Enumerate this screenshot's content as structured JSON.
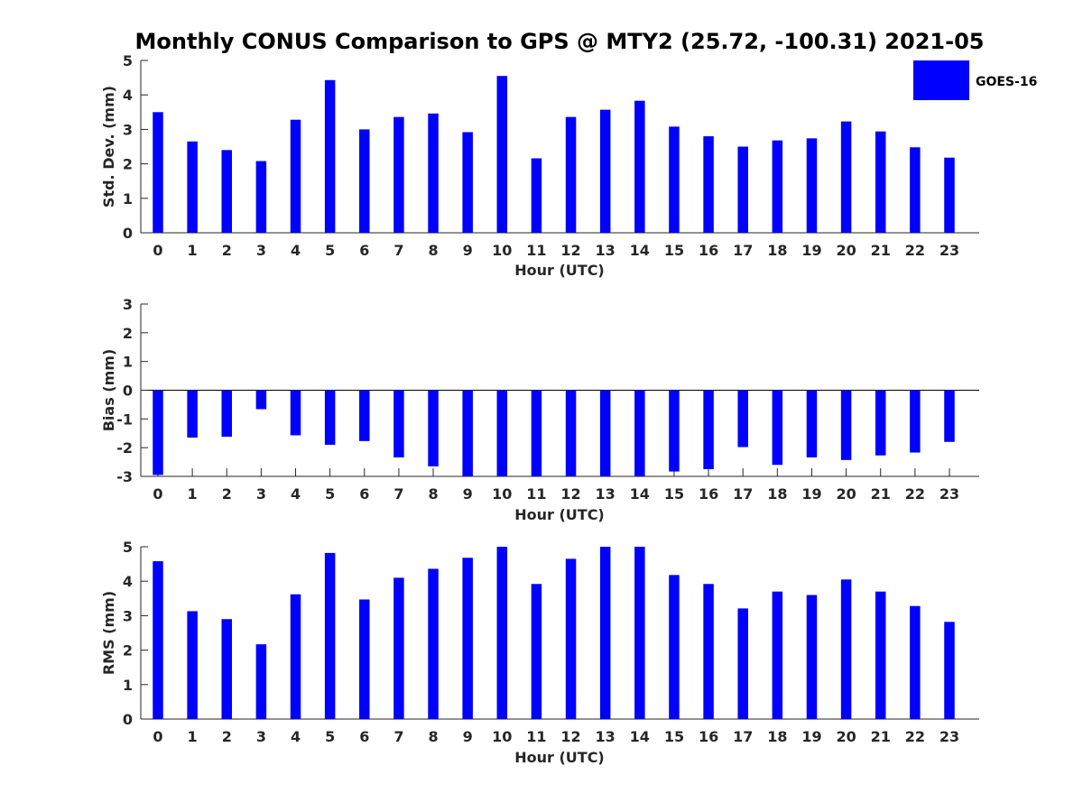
{
  "figure": {
    "title": "Monthly CONUS Comparison to GPS @ MTY2 (25.72, -100.31) 2021-05"
  },
  "legend": {
    "label": "GOES-16",
    "color": "#0000ff"
  },
  "colors": {
    "bar": "#0000ff",
    "axis": "#262626"
  },
  "chart_data": [
    {
      "type": "bar",
      "name": "std-dev",
      "xlabel": "Hour (UTC)",
      "ylabel": "Std. Dev. (mm)",
      "ylim": [
        0,
        5
      ],
      "yticks": [
        0,
        1,
        2,
        3,
        4,
        5
      ],
      "categories": [
        "0",
        "1",
        "2",
        "3",
        "4",
        "5",
        "6",
        "7",
        "8",
        "9",
        "10",
        "11",
        "12",
        "13",
        "14",
        "15",
        "16",
        "17",
        "18",
        "19",
        "20",
        "21",
        "22",
        "23"
      ],
      "series": [
        {
          "name": "GOES-16",
          "values": [
            3.5,
            2.65,
            2.4,
            2.08,
            3.28,
            4.43,
            3.0,
            3.36,
            3.46,
            2.92,
            4.55,
            2.16,
            3.36,
            3.57,
            3.83,
            3.08,
            2.8,
            2.5,
            2.68,
            2.74,
            3.23,
            2.94,
            2.48,
            2.18
          ]
        }
      ]
    },
    {
      "type": "bar",
      "name": "bias",
      "xlabel": "Hour (UTC)",
      "ylabel": "Bias (mm)",
      "ylim": [
        -3,
        3
      ],
      "yticks": [
        -3,
        -2,
        -1,
        0,
        1,
        2,
        3
      ],
      "categories": [
        "0",
        "1",
        "2",
        "3",
        "4",
        "5",
        "6",
        "7",
        "8",
        "9",
        "10",
        "11",
        "12",
        "13",
        "14",
        "15",
        "16",
        "17",
        "18",
        "19",
        "20",
        "21",
        "22",
        "23"
      ],
      "series": [
        {
          "name": "GOES-16",
          "values": [
            -2.95,
            -1.65,
            -1.62,
            -0.66,
            -1.57,
            -1.9,
            -1.77,
            -2.34,
            -2.65,
            -3.0,
            -3.0,
            -3.0,
            -3.0,
            -3.0,
            -3.0,
            -2.83,
            -2.75,
            -1.98,
            -2.6,
            -2.34,
            -2.43,
            -2.27,
            -2.17,
            -1.8
          ]
        }
      ]
    },
    {
      "type": "bar",
      "name": "rms",
      "xlabel": "Hour (UTC)",
      "ylabel": "RMS (mm)",
      "ylim": [
        0,
        5
      ],
      "yticks": [
        0,
        1,
        2,
        3,
        4,
        5
      ],
      "categories": [
        "0",
        "1",
        "2",
        "3",
        "4",
        "5",
        "6",
        "7",
        "8",
        "9",
        "10",
        "11",
        "12",
        "13",
        "14",
        "15",
        "16",
        "17",
        "18",
        "19",
        "20",
        "21",
        "22",
        "23"
      ],
      "series": [
        {
          "name": "GOES-16",
          "values": [
            4.58,
            3.13,
            2.9,
            2.17,
            3.62,
            4.82,
            3.47,
            4.1,
            4.36,
            4.68,
            5.0,
            3.92,
            4.65,
            5.0,
            5.0,
            4.18,
            3.92,
            3.21,
            3.7,
            3.6,
            4.05,
            3.7,
            3.28,
            2.82
          ]
        }
      ]
    }
  ]
}
